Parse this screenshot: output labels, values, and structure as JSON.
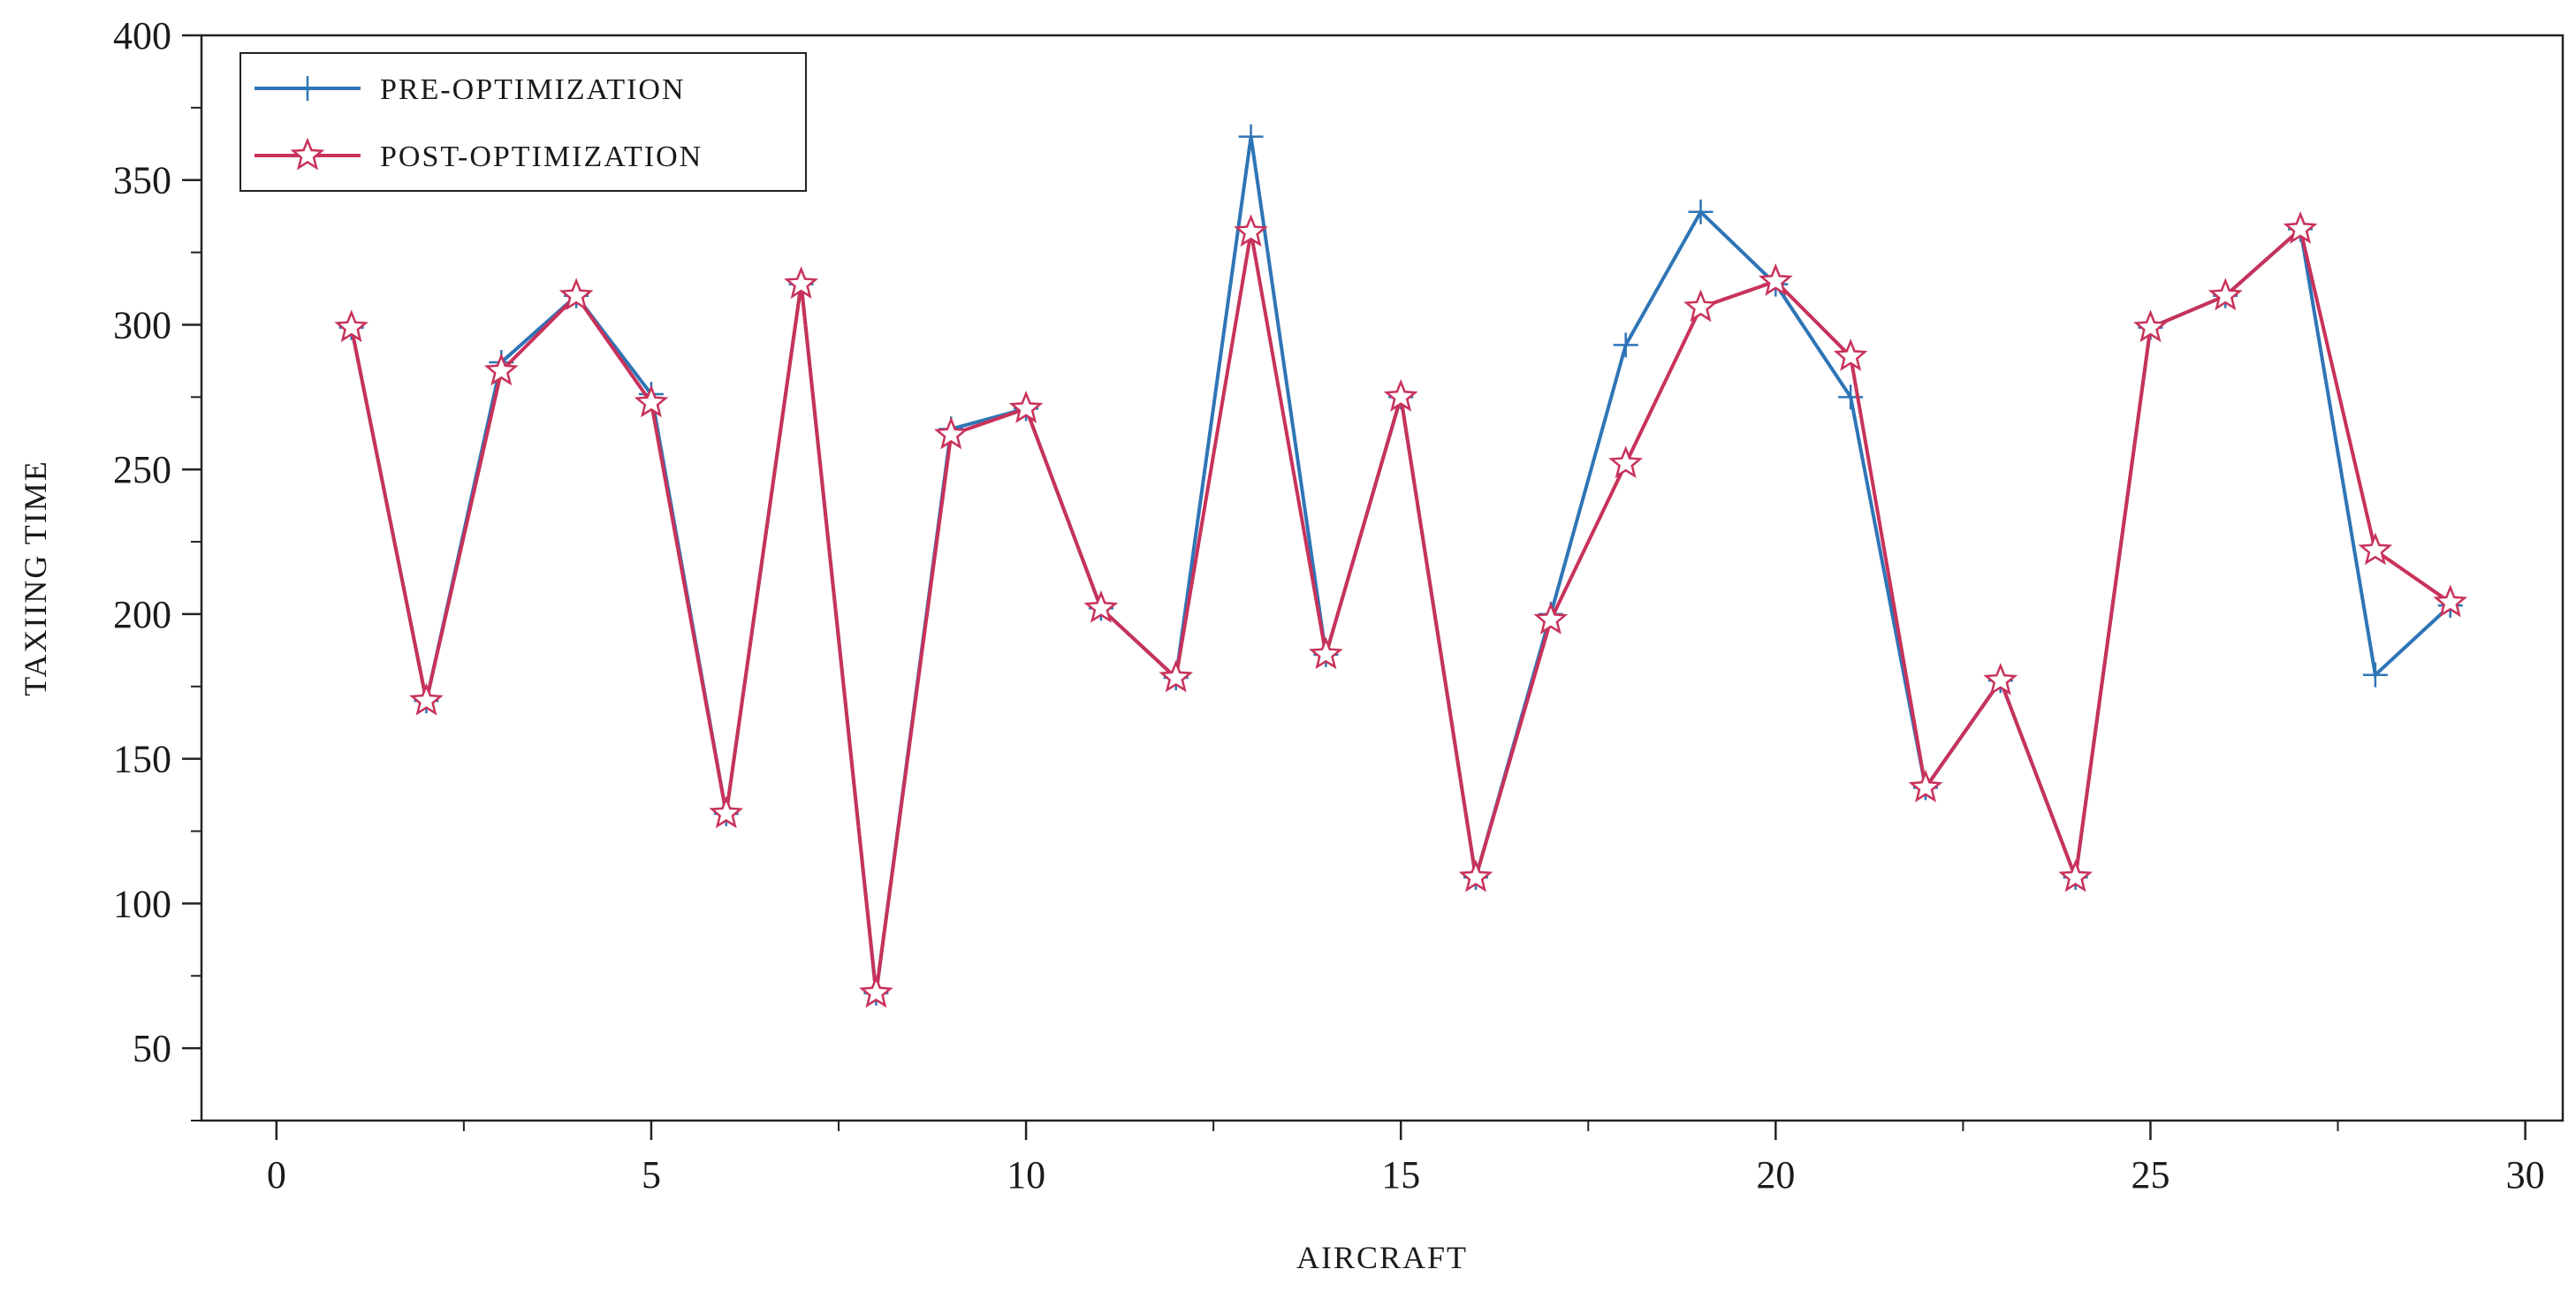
{
  "chart_data": {
    "type": "line",
    "title": "",
    "xlabel": "AIRCRAFT",
    "ylabel": "TAXIING TIME",
    "xlim": [
      -1,
      30.5
    ],
    "ylim": [
      25,
      400
    ],
    "x_ticks": [
      0,
      5,
      10,
      15,
      20,
      25,
      30
    ],
    "y_ticks": [
      50,
      100,
      150,
      200,
      250,
      300,
      350,
      400
    ],
    "x_minor_step": 2.5,
    "y_minor_step": 25,
    "grid": false,
    "legend_position": "top-left",
    "x": [
      1,
      2,
      3,
      4,
      5,
      6,
      7,
      8,
      9,
      10,
      11,
      12,
      13,
      14,
      15,
      16,
      17,
      18,
      19,
      20,
      21,
      22,
      23,
      24,
      25,
      26,
      27,
      28,
      29
    ],
    "series": [
      {
        "name": "PRE-OPTIMIZATION",
        "color": "#2e75b6",
        "marker": "plus",
        "values": [
          299,
          170,
          287,
          310,
          276,
          131,
          314,
          69,
          264,
          271,
          202,
          178,
          365,
          186,
          275,
          109,
          200,
          293,
          339,
          314,
          275,
          140,
          177,
          109,
          299,
          310,
          333,
          179,
          203
        ]
      },
      {
        "name": "POST-OPTIMIZATION",
        "color": "#c8325a",
        "marker": "star",
        "values": [
          299,
          170,
          284,
          310,
          273,
          131,
          314,
          69,
          262,
          271,
          202,
          178,
          332,
          186,
          275,
          109,
          198,
          252,
          306,
          315,
          289,
          140,
          177,
          109,
          299,
          310,
          333,
          222,
          204
        ]
      }
    ]
  }
}
